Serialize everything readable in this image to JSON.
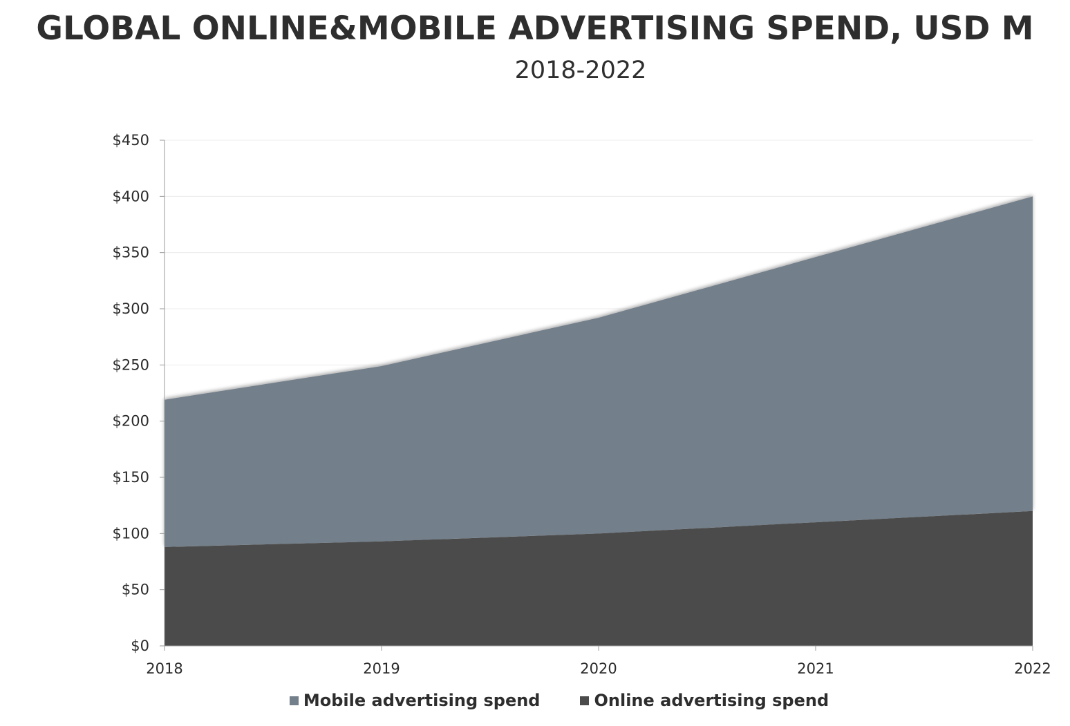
{
  "chart_data": {
    "type": "area",
    "stacked": true,
    "title": "GLOBAL ONLINE&MOBILE ADVERTISING SPEND, USD M",
    "subtitle": "2018-2022",
    "x": [
      "2018",
      "2019",
      "2020",
      "2021",
      "2022"
    ],
    "xlabel": "",
    "ylabel": "",
    "ylim": [
      0,
      450
    ],
    "yticks": [
      0,
      50,
      100,
      150,
      200,
      250,
      300,
      350,
      400,
      450
    ],
    "ytick_labels": [
      "$0",
      "$50",
      "$100",
      "$150",
      "$200",
      "$250",
      "$300",
      "$350",
      "$400",
      "$450"
    ],
    "grid": true,
    "legend_position": "bottom",
    "series": [
      {
        "name": "Online advertising spend",
        "values": [
          88,
          93,
          100,
          110,
          120
        ],
        "color": "#4b4b4b"
      },
      {
        "name": "Mobile advertising spend",
        "values": [
          131,
          156,
          192,
          236,
          280
        ],
        "color": "#737f8a"
      }
    ],
    "totals": [
      219,
      249,
      292,
      346,
      400
    ]
  },
  "legend": {
    "items": [
      {
        "label": "Mobile advertising spend",
        "color": "#737f8a"
      },
      {
        "label": "Online advertising spend",
        "color": "#4b4b4b"
      }
    ]
  }
}
